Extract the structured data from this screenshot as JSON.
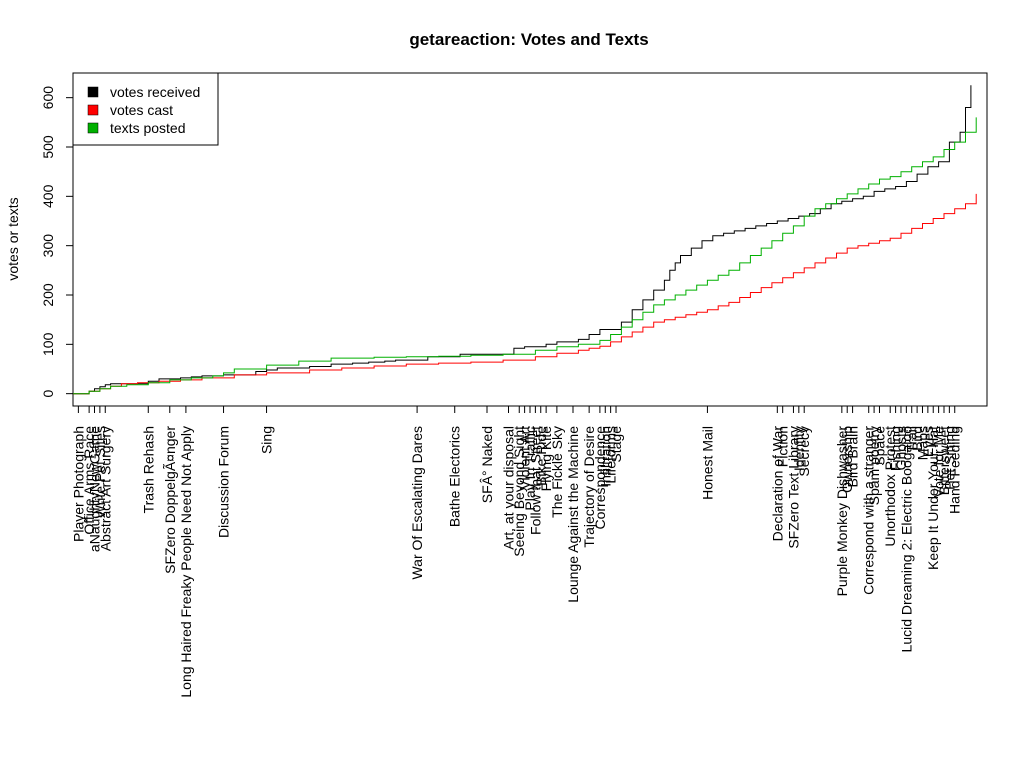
{
  "chart_data": {
    "type": "line",
    "step": true,
    "title": "getareaction: Votes and Texts",
    "xlabel": "",
    "ylabel": "votes or texts",
    "xlim": [
      0,
      170
    ],
    "ylim": [
      -25,
      650
    ],
    "yticks": [
      0,
      100,
      200,
      300,
      400,
      500,
      600
    ],
    "legend_position": "top-left",
    "series": [
      {
        "name": "votes received",
        "color": "#000000",
        "x": [
          0,
          3,
          4,
          5,
          6,
          7,
          9,
          12,
          14,
          16,
          20,
          22,
          24,
          28,
          34,
          36,
          38,
          44,
          48,
          52,
          55,
          58,
          60,
          66,
          72,
          82,
          84,
          88,
          90,
          94,
          96,
          98,
          102,
          104,
          106,
          108,
          110,
          111,
          112,
          113,
          115,
          117,
          119,
          121,
          123,
          125,
          127,
          129,
          131,
          133,
          135,
          137,
          139,
          141,
          143,
          145,
          147,
          149,
          151,
          153,
          155,
          157,
          159,
          161,
          163,
          165,
          166,
          167
        ],
        "y": [
          0,
          5,
          10,
          14,
          18,
          20,
          20,
          20,
          25,
          30,
          32,
          34,
          36,
          38,
          45,
          48,
          52,
          55,
          60,
          62,
          64,
          66,
          68,
          75,
          80,
          92,
          95,
          100,
          105,
          110,
          120,
          130,
          145,
          170,
          190,
          210,
          230,
          250,
          265,
          280,
          295,
          310,
          320,
          325,
          330,
          335,
          340,
          345,
          350,
          355,
          360,
          365,
          375,
          385,
          390,
          395,
          400,
          410,
          415,
          420,
          430,
          445,
          460,
          470,
          510,
          530,
          580,
          625
        ]
      },
      {
        "name": "votes cast",
        "color": "#ff0000",
        "x": [
          0,
          3,
          5,
          7,
          9,
          12,
          16,
          20,
          24,
          30,
          36,
          44,
          50,
          56,
          62,
          68,
          74,
          80,
          86,
          90,
          94,
          96,
          98,
          100,
          102,
          104,
          106,
          108,
          110,
          112,
          114,
          116,
          118,
          120,
          122,
          124,
          126,
          128,
          130,
          132,
          134,
          136,
          138,
          140,
          142,
          144,
          146,
          148,
          150,
          152,
          154,
          156,
          158,
          160,
          162,
          164,
          166,
          168
        ],
        "y": [
          0,
          5,
          10,
          15,
          20,
          22,
          25,
          28,
          32,
          38,
          42,
          48,
          52,
          56,
          60,
          62,
          64,
          68,
          75,
          82,
          88,
          92,
          96,
          105,
          115,
          125,
          135,
          145,
          150,
          155,
          160,
          165,
          170,
          178,
          185,
          195,
          205,
          215,
          225,
          235,
          245,
          255,
          265,
          275,
          285,
          295,
          300,
          305,
          310,
          315,
          325,
          335,
          345,
          355,
          365,
          375,
          385,
          405
        ]
      },
      {
        "name": "texts posted",
        "color": "#00b000",
        "x": [
          0,
          3,
          5,
          7,
          10,
          14,
          18,
          22,
          26,
          28,
          30,
          36,
          42,
          48,
          56,
          62,
          68,
          74,
          80,
          86,
          90,
          94,
          98,
          100,
          102,
          104,
          106,
          108,
          110,
          112,
          114,
          116,
          118,
          120,
          122,
          124,
          126,
          128,
          130,
          132,
          134,
          136,
          138,
          140,
          142,
          144,
          146,
          148,
          150,
          152,
          154,
          156,
          158,
          160,
          162,
          164,
          166,
          168
        ],
        "y": [
          0,
          5,
          10,
          15,
          18,
          22,
          28,
          32,
          36,
          42,
          50,
          58,
          66,
          72,
          74,
          75,
          76,
          78,
          80,
          88,
          95,
          100,
          108,
          120,
          135,
          150,
          165,
          180,
          190,
          200,
          210,
          220,
          230,
          240,
          250,
          265,
          280,
          295,
          310,
          325,
          340,
          360,
          375,
          385,
          395,
          405,
          415,
          425,
          435,
          440,
          450,
          460,
          470,
          480,
          495,
          510,
          530,
          560
        ]
      }
    ],
    "x_markers": [
      {
        "x": 1,
        "label": "Player Photograph"
      },
      {
        "x": 3,
        "label": "Office Arms Race"
      },
      {
        "x": 4,
        "label": "aNaughtyNewGame"
      },
      {
        "x": 5,
        "label": "Write Pet Sites"
      },
      {
        "x": 6,
        "label": "Abstract Art Surgery"
      },
      {
        "x": 14,
        "label": "Trash Rehash"
      },
      {
        "x": 18,
        "label": "SFZero DoppelgÃ¤nger"
      },
      {
        "x": 21,
        "label": "Long Haired Freaky People Need Not Apply"
      },
      {
        "x": 28,
        "label": "Discussion Forum"
      },
      {
        "x": 36,
        "label": "Sing"
      },
      {
        "x": 64,
        "label": "War Of Escalating Dares"
      },
      {
        "x": 71,
        "label": "Bathe Electorics"
      },
      {
        "x": 77,
        "label": "SFÂ° Naked"
      },
      {
        "x": 81,
        "label": "Art, at your disposal"
      },
      {
        "x": 83,
        "label": "Seeing Beyond Sight"
      },
      {
        "x": 84,
        "label": "Violent Art"
      },
      {
        "x": 85,
        "label": "Play In Traffic"
      },
      {
        "x": 86,
        "label": "Follow that Street"
      },
      {
        "x": 87,
        "label": "Bike Ride"
      },
      {
        "x": 88,
        "label": "Flying Kite"
      },
      {
        "x": 90,
        "label": "The Fickle Sky"
      },
      {
        "x": 93,
        "label": "Lounge Against the Machine"
      },
      {
        "x": 96,
        "label": "Trajectory of Desire"
      },
      {
        "x": 98,
        "label": "Correspondence"
      },
      {
        "x": 99,
        "label": "Infiltration"
      },
      {
        "x": 100,
        "label": "Lifeforms"
      },
      {
        "x": 101,
        "label": "Stage"
      },
      {
        "x": 118,
        "label": "Honest Mail"
      },
      {
        "x": 131,
        "label": "Declaration of War"
      },
      {
        "x": 132,
        "label": "Fiction"
      },
      {
        "x": 134,
        "label": "SFZero Text Library"
      },
      {
        "x": 135,
        "label": "Identity"
      },
      {
        "x": 136,
        "label": "Secrecy"
      },
      {
        "x": 143,
        "label": "Purple Monkey Dishwasher"
      },
      {
        "x": 144,
        "label": "Ownership"
      },
      {
        "x": 145,
        "label": "Bird Brain"
      },
      {
        "x": 148,
        "label": "Correspond with a stranger"
      },
      {
        "x": 149,
        "label": "Spam poetry"
      },
      {
        "x": 150,
        "label": "Space"
      },
      {
        "x": 152,
        "label": "Unorthodox Protest"
      },
      {
        "x": 153,
        "label": "Fishing"
      },
      {
        "x": 154,
        "label": "Ghosts"
      },
      {
        "x": 155,
        "label": "Lucid Dreaming 2: Electric Boogaloo"
      },
      {
        "x": 156,
        "label": "Trail"
      },
      {
        "x": 157,
        "label": "Bird"
      },
      {
        "x": 158,
        "label": "Maps"
      },
      {
        "x": 159,
        "label": "Eyes"
      },
      {
        "x": 160,
        "label": "Keep It Under Your Hat"
      },
      {
        "x": 161,
        "label": "Vote for Me"
      },
      {
        "x": 162,
        "label": "Bittersweet"
      },
      {
        "x": 163,
        "label": "Pet Sitting"
      },
      {
        "x": 164,
        "label": "Hand Feeding"
      }
    ]
  }
}
